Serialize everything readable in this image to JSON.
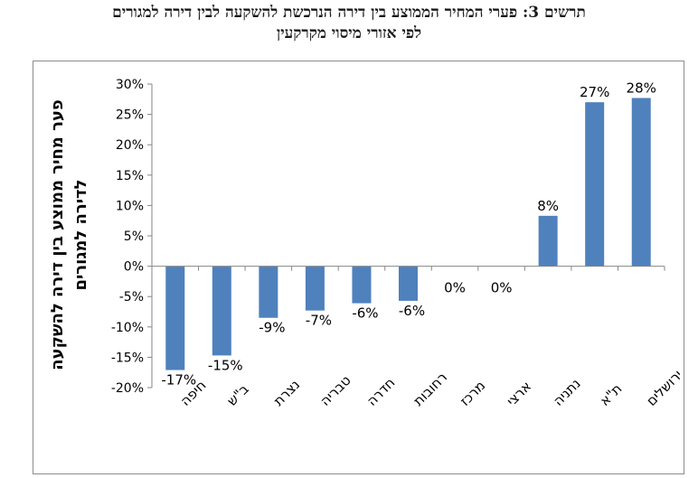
{
  "chart_data": {
    "type": "bar",
    "title": "תרשים 3: פערי המחיר הממוצע בין דירה הנרכשת להשקעה לבין דירה למגורים",
    "subtitle": "לפי אזורי מיסוי מקרקעין",
    "ylabel_line1": "פער מחיר ממוצע בין דירה להשקעה",
    "ylabel_line2": "לדירה למגורים",
    "xlabel": "",
    "categories": [
      "חיפה",
      "ב\"ש",
      "נצרת",
      "טבריה",
      "חדרה",
      "רחובות",
      "מרכז",
      "ארצי",
      "נתניה",
      "ת\"א",
      "ירושלים"
    ],
    "values": [
      -17,
      -15,
      -9,
      -7,
      -6,
      -6,
      0,
      0,
      8,
      27,
      28
    ],
    "data_labels": [
      "-17%",
      "-15%",
      "-9%",
      "-7%",
      "-6%",
      "-6%",
      "0%",
      "0%",
      "8%",
      "27%",
      "28%"
    ],
    "bar_values_precise": [
      -17.1,
      -14.7,
      -8.5,
      -7.3,
      -6.1,
      -5.7,
      0,
      0,
      8.3,
      27.0,
      27.7
    ],
    "ylim": [
      -20,
      30
    ],
    "yticks": [
      30,
      25,
      20,
      15,
      10,
      5,
      0,
      -5,
      -10,
      -15,
      -20
    ],
    "ytick_labels": [
      "30%",
      "25%",
      "20%",
      "15%",
      "10%",
      "5%",
      "0%",
      "-5%",
      "-10%",
      "-15%",
      "-20%"
    ],
    "grid": false,
    "legend": "none",
    "bar_color": "#4f81bd"
  }
}
